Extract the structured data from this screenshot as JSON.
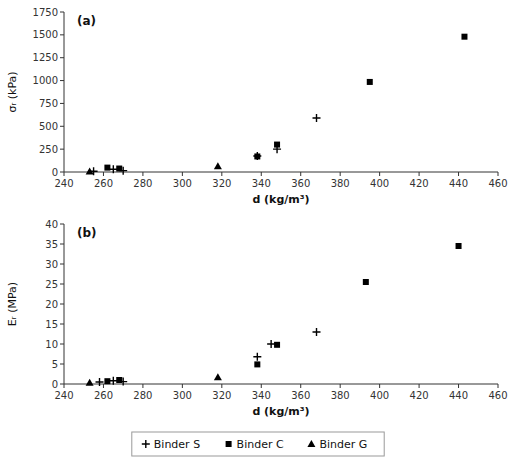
{
  "chart_data": [
    {
      "type": "scatter",
      "title": "(a)",
      "x_label": "d (kg/m³)",
      "y_label": "σᵣ (kPa)",
      "color": "black",
      "grid": false,
      "xlim": [
        240,
        460
      ],
      "xticks": [
        240,
        260,
        280,
        300,
        320,
        340,
        360,
        380,
        400,
        420,
        440,
        460
      ],
      "ylim": [
        0,
        1750
      ],
      "yticks": [
        0,
        250,
        500,
        750,
        1000,
        1250,
        1500,
        1750
      ],
      "series": [
        {
          "name": "Binder S",
          "marker": "plus",
          "x": [
            255,
            265,
            270,
            338,
            348,
            368
          ],
          "values": [
            8,
            30,
            15,
            175,
            250,
            590
          ]
        },
        {
          "name": "Binder C",
          "marker": "square",
          "x": [
            262,
            268,
            338,
            348,
            395,
            443
          ],
          "values": [
            48,
            38,
            170,
            300,
            985,
            1480
          ]
        },
        {
          "name": "Binder G",
          "marker": "triangle",
          "x": [
            253,
            318
          ],
          "values": [
            5,
            62
          ]
        }
      ]
    },
    {
      "type": "scatter",
      "title": "(b)",
      "x_label": "d (kg/m³)",
      "y_label": "Eᵣ (MPa)",
      "color": "black",
      "grid": false,
      "legend": "bottom",
      "xlim": [
        240,
        460
      ],
      "xticks": [
        240,
        260,
        280,
        300,
        320,
        340,
        360,
        380,
        400,
        420,
        440,
        460
      ],
      "ylim": [
        0,
        40
      ],
      "yticks": [
        0,
        5,
        10,
        15,
        20,
        25,
        30,
        35,
        40
      ],
      "series": [
        {
          "name": "Binder S",
          "marker": "plus",
          "x": [
            258,
            265,
            270,
            338,
            345,
            368
          ],
          "values": [
            0.5,
            0.8,
            0.6,
            6.8,
            10.0,
            13.0
          ]
        },
        {
          "name": "Binder C",
          "marker": "square",
          "x": [
            262,
            268,
            338,
            348,
            393,
            440
          ],
          "values": [
            0.7,
            1.0,
            4.9,
            9.8,
            25.5,
            34.5
          ]
        },
        {
          "name": "Binder G",
          "marker": "triangle",
          "x": [
            253,
            318
          ],
          "values": [
            0.3,
            1.7
          ]
        }
      ]
    }
  ]
}
